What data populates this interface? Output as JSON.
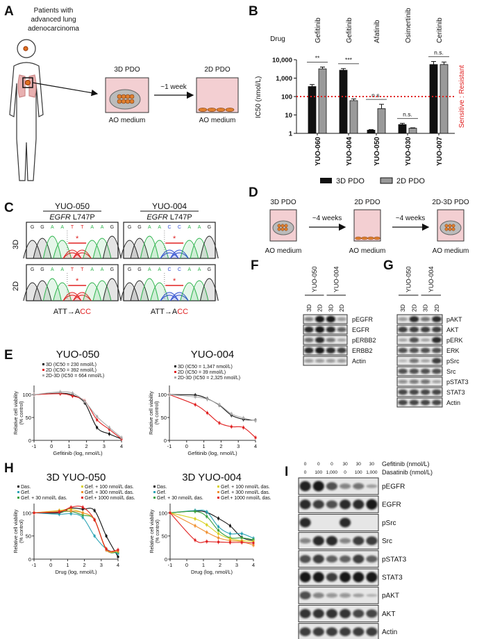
{
  "panels": {
    "A": {
      "label": "A",
      "patient_text": [
        "Patients with",
        "advanced lung",
        "adenocarcinoma"
      ],
      "well_3d": "3D PDO",
      "well_2d": "2D PDO",
      "medium_3d": "AO medium",
      "medium_2d": "AO medium",
      "arrow_label": "~1 week"
    },
    "C": {
      "label": "C",
      "samples": [
        {
          "name": "YUO-050",
          "gene": "EGFR",
          "mutation": "L747P",
          "seq": "GGAATTAAG"
        },
        {
          "name": "YUO-004",
          "gene": "EGFR",
          "mutation": "L747P",
          "seq": "GGAACCAAG"
        }
      ],
      "rows": [
        "3D",
        "2D"
      ],
      "codon_from": "ATT→A",
      "codon_to": "CC",
      "star": "*"
    },
    "D": {
      "label": "D",
      "stages": [
        "3D PDO",
        "2D PDO",
        "2D-3D PDO"
      ],
      "mediums": [
        "AO medium",
        "AO medium",
        "AO medium"
      ],
      "arrows": [
        "~4 weeks",
        "~4 weeks"
      ]
    },
    "F": {
      "label": "F",
      "samples": [
        "YUO-050",
        "YUO-004"
      ],
      "lanes": [
        "3D",
        "2D",
        "3D",
        "2D"
      ],
      "rows": [
        {
          "name": "pEGFR",
          "intensity": [
            0.45,
            1.0,
            1.0,
            0.3
          ]
        },
        {
          "name": "EGFR",
          "intensity": [
            0.9,
            1.0,
            0.9,
            0.6
          ]
        },
        {
          "name": "pERBB2",
          "intensity": [
            0.55,
            0.9,
            0.5,
            0.2
          ]
        },
        {
          "name": "ERBB2",
          "intensity": [
            0.9,
            1.0,
            0.9,
            0.8
          ]
        },
        {
          "name": "Actin",
          "intensity": [
            0.3,
            0.3,
            0.3,
            0.3
          ]
        }
      ]
    },
    "G": {
      "label": "G",
      "samples": [
        "YUO-050",
        "YUO-004"
      ],
      "lanes": [
        "3D",
        "2D",
        "3D",
        "2D"
      ],
      "rows": [
        {
          "name": "pAKT",
          "intensity": [
            0.3,
            0.9,
            0.5,
            0.9
          ]
        },
        {
          "name": "AKT",
          "intensity": [
            0.8,
            0.8,
            0.8,
            0.8
          ]
        },
        {
          "name": "pERK",
          "intensity": [
            0.2,
            0.7,
            0.2,
            0.9
          ]
        },
        {
          "name": "ERK",
          "intensity": [
            0.7,
            0.7,
            0.7,
            0.7
          ]
        },
        {
          "name": "pSrc",
          "intensity": [
            0.1,
            0.5,
            0.2,
            0.8
          ]
        },
        {
          "name": "Src",
          "intensity": [
            0.7,
            0.7,
            0.7,
            0.7
          ]
        },
        {
          "name": "pSTAT3",
          "intensity": [
            0.35,
            0.45,
            0.5,
            0.2
          ]
        },
        {
          "name": "STAT3",
          "intensity": [
            0.75,
            0.75,
            0.75,
            0.75
          ]
        },
        {
          "name": "Actin",
          "intensity": [
            0.75,
            0.75,
            0.75,
            0.75
          ]
        }
      ]
    },
    "I": {
      "label": "I",
      "gefitinib_label": "Gefitinib (nmol/L)",
      "dasatinib_label": "Dasatinib (nmol/L)",
      "gefitinib": [
        "0",
        "0",
        "0",
        "30",
        "30",
        "30"
      ],
      "dasatinib": [
        "0",
        "100",
        "1,000",
        "0",
        "100",
        "1,000"
      ],
      "rows": [
        {
          "name": "pEGFR",
          "intensity": [
            0.95,
            1.0,
            0.7,
            0.4,
            0.5,
            0.2
          ]
        },
        {
          "name": "EGFR",
          "intensity": [
            0.9,
            0.8,
            0.7,
            0.9,
            0.9,
            1.0
          ]
        },
        {
          "name": "pSrc",
          "intensity": [
            0.9,
            0.0,
            0.0,
            0.9,
            0.0,
            0.0
          ]
        },
        {
          "name": "Src",
          "intensity": [
            0.4,
            0.9,
            0.9,
            0.4,
            0.8,
            0.8
          ]
        },
        {
          "name": "pSTAT3",
          "intensity": [
            0.7,
            0.8,
            0.6,
            0.6,
            0.8,
            0.6
          ]
        },
        {
          "name": "STAT3",
          "intensity": [
            1.0,
            1.0,
            0.8,
            1.0,
            1.0,
            1.0
          ]
        },
        {
          "name": "pAKT",
          "intensity": [
            0.7,
            0.4,
            0.3,
            0.3,
            0.2,
            0.1
          ]
        },
        {
          "name": "AKT",
          "intensity": [
            0.85,
            0.85,
            0.85,
            0.85,
            0.75,
            0.75
          ]
        },
        {
          "name": "Actin",
          "intensity": [
            0.8,
            0.8,
            0.8,
            0.8,
            0.8,
            0.8
          ]
        }
      ]
    },
    "E": {
      "label": "E"
    },
    "H": {
      "label": "H"
    },
    "B": {
      "label": "B"
    }
  },
  "colors": {
    "red": "#e02020",
    "black": "#111111",
    "grey": "#9a9a9a",
    "teal": "#2aa3b5",
    "green": "#3aa040",
    "yellow": "#d8d020",
    "orange": "#f09030"
  },
  "chart_data": [
    {
      "id": "B",
      "type": "bar",
      "ylabel": "IC50 (nmol/L)",
      "yscale": "log",
      "ylim": [
        1,
        10000
      ],
      "yticks": [
        "1",
        "10",
        "100",
        "1,000",
        "10,000"
      ],
      "drug_row_label": "Drug",
      "drugs": [
        "Gefitinib",
        "Gefitinib",
        "Afatinib",
        "Osimertinib",
        "Ceritinib"
      ],
      "categories": [
        "YUO-060",
        "YUO-004",
        "YUO-050",
        "YUO-030",
        "YUO-007"
      ],
      "series": [
        {
          "name": "3D PDO",
          "color": "#111111",
          "values": [
            350,
            2700,
            1.5,
            3,
            5500
          ],
          "err_upper": [
            450,
            3300,
            1.6,
            3.5,
            8000
          ]
        },
        {
          "name": "2D PDO",
          "color": "#9a9a9a",
          "values": [
            3200,
            60,
            22,
            1.9,
            5500
          ],
          "err_upper": [
            4000,
            75,
            38,
            2.0,
            7500
          ]
        }
      ],
      "significance": [
        "**",
        "***",
        "n.s.",
        "n.s.",
        "n.s."
      ],
      "threshold": 100,
      "threshold_label": "Sensitive : Resistant",
      "legend": "bottom"
    },
    {
      "id": "E1",
      "type": "line",
      "title": "YUO-050",
      "xlabel": "Gefitinib (log, nmol/L)",
      "ylabel": [
        "Relative cell viability",
        "(% control)"
      ],
      "xlim": [
        -1,
        4
      ],
      "ylim": [
        0,
        120
      ],
      "xticks": [
        "-1",
        "0",
        "1",
        "2",
        "3",
        "4"
      ],
      "yticks": [
        "0",
        "50",
        "100"
      ],
      "x": [
        -1,
        0.5,
        1.2,
        1.9,
        2.6,
        3.3,
        4
      ],
      "series": [
        {
          "name": "3D (IC50 = 230 nmol/L)",
          "color": "#111111",
          "values": [
            100,
            103,
            99,
            82,
            28,
            14,
            3
          ]
        },
        {
          "name": "2D (IC50 = 392 nmol/L)",
          "color": "#e02020",
          "values": [
            100,
            102,
            97,
            86,
            45,
            24,
            3
          ]
        },
        {
          "name": "2D-3D (IC50 = 664 nmol/L)",
          "color": "#aaaaaa",
          "values": [
            100,
            106,
            103,
            85,
            52,
            28,
            6
          ]
        }
      ]
    },
    {
      "id": "E2",
      "type": "line",
      "title": "YUO-004",
      "xlabel": "Gefitinib (log, nmol/L)",
      "ylabel": [
        "Relative cell viability",
        "(% control)"
      ],
      "xlim": [
        -1,
        4
      ],
      "ylim": [
        0,
        120
      ],
      "xticks": [
        "-1",
        "0",
        "1",
        "2",
        "3",
        "4"
      ],
      "yticks": [
        "0",
        "50",
        "100"
      ],
      "x": [
        -1,
        0.5,
        1.2,
        1.9,
        2.6,
        3.3,
        4
      ],
      "series": [
        {
          "name": "3D (IC50 = 1,347 nmol/L)",
          "color": "#111111",
          "values": [
            100,
            99,
            91,
            77,
            55,
            46,
            44
          ]
        },
        {
          "name": "2D (IC50 = 39 nmol/L)",
          "color": "#e02020",
          "values": [
            100,
            78,
            60,
            38,
            30,
            28,
            6
          ]
        },
        {
          "name": "2D-3D (IC50 = 2,325 nmol/L)",
          "color": "#aaaaaa",
          "values": [
            100,
            95,
            90,
            78,
            58,
            49,
            43
          ]
        }
      ]
    },
    {
      "id": "H1",
      "type": "line",
      "title": "3D YUO-050",
      "xlabel": "Drug (log, nmol/L)",
      "ylabel": [
        "Relative cell viability",
        "(% control)"
      ],
      "xlim": [
        -1,
        4
      ],
      "ylim": [
        0,
        120
      ],
      "xticks": [
        "-1",
        "0",
        "1",
        "2",
        "3",
        "4"
      ],
      "yticks": [
        "0",
        "50",
        "100"
      ],
      "x": [
        -1,
        0.5,
        1.2,
        1.9,
        2.6,
        3.3,
        4
      ],
      "series": [
        {
          "name": "Das.",
          "color": "#111111",
          "values": [
            100,
            100,
            110,
            108,
            105,
            50,
            5
          ]
        },
        {
          "name": "Gef.",
          "color": "#2aa3b5",
          "values": [
            100,
            97,
            98,
            90,
            50,
            22,
            12
          ]
        },
        {
          "name": "Gef. + 30 nmol/L das.",
          "color": "#3aa040",
          "values": [
            100,
            102,
            103,
            95,
            85,
            20,
            15
          ]
        },
        {
          "name": "Gef. + 100 nmol/L das.",
          "color": "#d8d020",
          "values": [
            100,
            105,
            108,
            100,
            85,
            22,
            17
          ]
        },
        {
          "name": "Gef. + 300 nmol/L das.",
          "color": "#f09030",
          "values": [
            100,
            104,
            104,
            100,
            85,
            20,
            18
          ]
        },
        {
          "name": "Gef.+ 1000 nmol/L das.",
          "color": "#e02020",
          "values": [
            100,
            102,
            112,
            112,
            85,
            22,
            20
          ]
        }
      ]
    },
    {
      "id": "H2",
      "type": "line",
      "title": "3D YUO-004",
      "xlabel": "Drug (log, nmol/L)",
      "ylabel": [
        "Relative cell viability",
        "(% control)"
      ],
      "xlim": [
        -1,
        4
      ],
      "ylim": [
        0,
        120
      ],
      "xticks": [
        "-1",
        "0",
        "1",
        "2",
        "3",
        "4"
      ],
      "yticks": [
        "0",
        "50",
        "100"
      ],
      "x": [
        -1,
        0.5,
        1.2,
        1.9,
        2.6,
        3.3,
        4
      ],
      "series": [
        {
          "name": "Das.",
          "color": "#111111",
          "values": [
            100,
            104,
            101,
            88,
            72,
            47,
            40
          ]
        },
        {
          "name": "Gef.",
          "color": "#2aa3b5",
          "values": [
            100,
            105,
            102,
            70,
            55,
            55,
            45
          ]
        },
        {
          "name": "Gef. + 30 nmol/L das.",
          "color": "#3aa040",
          "values": [
            100,
            103,
            92,
            62,
            46,
            46,
            42
          ]
        },
        {
          "name": "Gef. + 100 nmol/L das.",
          "color": "#d8d020",
          "values": [
            100,
            87,
            74,
            55,
            44,
            40,
            38
          ]
        },
        {
          "name": "Gef. + 300 nmol/L das.",
          "color": "#f09030",
          "values": [
            100,
            72,
            58,
            46,
            40,
            38,
            30
          ]
        },
        {
          "name": "Gef.+ 1000 nmol/L das.",
          "color": "#e02020",
          "values": [
            100,
            41,
            38,
            37,
            36,
            36,
            35
          ]
        }
      ]
    }
  ]
}
